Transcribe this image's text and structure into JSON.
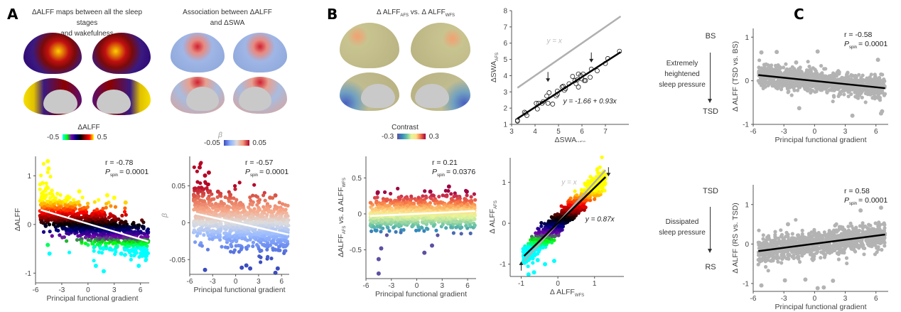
{
  "panels": {
    "A": {
      "letter": "A",
      "maps": [
        {
          "title_line1": "ΔALFF maps between all the sleep stages",
          "title_line2": "and wakefulness",
          "colorbar": {
            "label": "ΔALFF",
            "min": "-0.5",
            "max": "0.5",
            "colors": [
              "#00ffff",
              "#00ff00",
              "#7700aa",
              "#000080",
              "#000000",
              "#8b0000",
              "#ff0000",
              "#ffff00"
            ]
          }
        },
        {
          "title_line1": "Association between ΔALFF",
          "title_line2": "and ΔSWA",
          "colorbar": {
            "label": "β",
            "min": "-0.05",
            "max": "0.05",
            "colors": [
              "#3b4cc0",
              "#8db0fe",
              "#dddddd",
              "#f4987a",
              "#b40426"
            ]
          }
        }
      ]
    },
    "B": {
      "letter": "B",
      "map": {
        "title": "Δ ALFF",
        "title_sub1": "AFS",
        "title_mid": " vs. Δ ALFF",
        "title_sub2": "WFS",
        "colorbar": {
          "label": "Contrast",
          "min": "-0.3",
          "max": "0.3",
          "colors": [
            "#5e4fa2",
            "#3288bd",
            "#66c2a5",
            "#e6f598",
            "#fee08b",
            "#f46d43",
            "#9e0142"
          ]
        }
      }
    },
    "C": {
      "letter": "C",
      "top": {
        "from": "BS",
        "to": "TSD",
        "desc": [
          "Extremely",
          "heightened",
          "sleep pressure"
        ]
      },
      "bottom": {
        "from": "TSD",
        "to": "RS",
        "desc": [
          "Dissipated",
          "sleep pressure"
        ]
      }
    }
  },
  "chart_data": [
    {
      "id": "A-left",
      "type": "scatter",
      "xlabel": "Principal functional gradient",
      "ylabel": "ΔALFF",
      "xlim": [
        -6,
        7
      ],
      "ylim": [
        -1.2,
        1.4
      ],
      "xticks": [
        "-6",
        "-3",
        "0",
        "3",
        "6"
      ],
      "yticks": [
        "-1",
        "0",
        "1"
      ],
      "stats": {
        "r": "r = -0.78",
        "p_label": "P",
        "p_sub": "spin",
        "p_value": "= 0.0001"
      },
      "fit": {
        "x": [
          -5.4,
          6.9
        ],
        "y": [
          0.3,
          -0.35
        ],
        "color": "#ffffff"
      },
      "colormap": [
        "#00ffff",
        "#00ff00",
        "#7700aa",
        "#000080",
        "#000000",
        "#8b0000",
        "#ff0000",
        "#ff8c00",
        "#ffff00"
      ],
      "color_range": [
        -0.5,
        0.5
      ],
      "cloud": {
        "x_range": [
          -5.5,
          6.9
        ],
        "center_at_min": 0.3,
        "center_at_max": -0.35,
        "spread": 0.35
      },
      "outliers": [
        [
          -4.6,
          1.3
        ],
        [
          -4.5,
          1.15
        ],
        [
          -5.2,
          0.85
        ],
        [
          -1.0,
          0.68
        ],
        [
          2.2,
          0.6
        ],
        [
          3.0,
          0.55
        ],
        [
          4.3,
          0.45
        ],
        [
          -4.4,
          -0.6
        ],
        [
          0.9,
          -0.85
        ],
        [
          1.8,
          -0.96
        ],
        [
          5.8,
          -0.85
        ],
        [
          -4.6,
          -0.42
        ],
        [
          3.8,
          -0.6
        ]
      ]
    },
    {
      "id": "A-right",
      "type": "scatter",
      "xlabel": "Principal functional gradient",
      "ylabel": "β",
      "xlim": [
        -6,
        7
      ],
      "ylim": [
        -0.07,
        0.09
      ],
      "xticks": [
        "-6",
        "-3",
        "0",
        "3",
        "6"
      ],
      "yticks": [
        "-0.05",
        "0",
        "0.05"
      ],
      "stats": {
        "r": "r = -0.57",
        "p_label": "P",
        "p_sub": "spin",
        "p_value": "= 0.0001"
      },
      "fit": {
        "x": [
          -5.5,
          6.9
        ],
        "y": [
          0.013,
          -0.016
        ],
        "color": "#ffffff"
      },
      "colormap": [
        "#3b4cc0",
        "#6788ee",
        "#9abbff",
        "#dddddd",
        "#f7a889",
        "#e26952",
        "#b40426"
      ],
      "color_range": [
        -0.05,
        0.05
      ],
      "cloud": {
        "x_range": [
          -5.5,
          6.9
        ],
        "center_at_min": 0.01,
        "center_at_max": -0.01,
        "spread": 0.03
      },
      "outliers": [
        [
          -4.7,
          0.075
        ],
        [
          -3.5,
          0.068
        ],
        [
          -4.0,
          0.064
        ],
        [
          -2.3,
          0.042
        ],
        [
          -0.7,
          0.038
        ],
        [
          5.2,
          0.037
        ],
        [
          4.5,
          0.034
        ],
        [
          -4.0,
          -0.064
        ],
        [
          1.4,
          -0.058
        ],
        [
          0.8,
          -0.061
        ],
        [
          1.9,
          -0.062
        ],
        [
          5.2,
          -0.068
        ],
        [
          5.5,
          -0.062
        ]
      ]
    },
    {
      "id": "B-lower-left",
      "type": "scatter",
      "xlabel": "Principal functional gradient",
      "ylabel": "ΔALFF",
      "ylabel_sub1": "AFS",
      "ylabel_mid": " vs. Δ ALFF",
      "ylabel_sub2": "WFS",
      "xlim": [
        -6,
        7
      ],
      "ylim": [
        -0.9,
        0.8
      ],
      "xticks": [
        "-6",
        "-3",
        "0",
        "3",
        "6"
      ],
      "yticks": [
        "-0.5",
        "0",
        "0.5"
      ],
      "stats": {
        "r": "r = 0.21",
        "p_label": "P",
        "p_sub": "spin",
        "p_value": "= 0.0376"
      },
      "fit": {
        "x": [
          -5.5,
          6.9
        ],
        "y": [
          -0.03,
          0.04
        ],
        "color": "#ffffff"
      },
      "colormap": [
        "#5e4fa2",
        "#3288bd",
        "#66c2a5",
        "#abdda4",
        "#e6f598",
        "#fee08b",
        "#fdae61",
        "#f46d43",
        "#d53e4f",
        "#9e0142"
      ],
      "color_range": [
        -0.3,
        0.3
      ],
      "cloud": {
        "x_range": [
          -5.5,
          6.9
        ],
        "center_at_min": -0.02,
        "center_at_max": 0.04,
        "spread": 0.2
      },
      "outliers": [
        [
          -4.5,
          -0.83
        ],
        [
          -4.5,
          -0.63
        ],
        [
          0.9,
          -0.54
        ],
        [
          1.8,
          -0.44
        ],
        [
          3.8,
          0.38
        ],
        [
          -4.6,
          0.3
        ],
        [
          -4.2,
          -0.48
        ],
        [
          5.9,
          0.31
        ],
        [
          1.6,
          0.31
        ],
        [
          -3.5,
          0.2
        ]
      ]
    },
    {
      "id": "B-upper-right",
      "type": "scatter",
      "xlabel": "ΔSWA",
      "xlabel_sub": "WFS",
      "ylabel": "ΔSWA",
      "ylabel_sub": "AFS",
      "xlim": [
        3,
        8
      ],
      "ylim": [
        1,
        8
      ],
      "xticks": [
        "3",
        "4",
        "5",
        "6",
        "7"
      ],
      "yticks": [
        "1",
        "2",
        "3",
        "4",
        "5",
        "6",
        "7",
        "8"
      ],
      "identity_label": "y = x",
      "fit_label": "y = -1.66 + 0.93x",
      "identity_line": {
        "x": [
          3.25,
          7.65
        ],
        "y": [
          3.25,
          7.65
        ],
        "color": "#b0b0b0"
      },
      "fit": {
        "x": [
          3.25,
          7.65
        ],
        "y": [
          1.36,
          5.45
        ],
        "color": "#000000"
      },
      "arrows_at": [
        [
          4.55,
          3.7
        ],
        [
          6.4,
          4.9
        ]
      ],
      "points": [
        [
          3.25,
          1.25
        ],
        [
          3.25,
          1.2
        ],
        [
          3.55,
          1.75
        ],
        [
          3.6,
          1.7
        ],
        [
          3.65,
          1.55
        ],
        [
          4.05,
          2.3
        ],
        [
          4.1,
          1.95
        ],
        [
          4.15,
          2.3
        ],
        [
          4.35,
          2.4
        ],
        [
          4.3,
          2.3
        ],
        [
          4.5,
          2.75
        ],
        [
          4.55,
          2.3
        ],
        [
          4.6,
          2.95
        ],
        [
          4.75,
          2.25
        ],
        [
          4.95,
          3.05
        ],
        [
          4.9,
          2.75
        ],
        [
          4.95,
          2.85
        ],
        [
          5.15,
          3.3
        ],
        [
          5.2,
          3.35
        ],
        [
          5.25,
          3.1
        ],
        [
          5.3,
          3.2
        ],
        [
          5.45,
          3.5
        ],
        [
          5.6,
          3.95
        ],
        [
          5.7,
          3.7
        ],
        [
          5.75,
          3.5
        ],
        [
          5.8,
          3.75
        ],
        [
          5.85,
          4.1
        ],
        [
          5.85,
          3.3
        ],
        [
          5.95,
          4.0
        ],
        [
          6.0,
          3.8
        ],
        [
          6.05,
          4.1
        ],
        [
          6.1,
          3.7
        ],
        [
          6.15,
          3.7
        ],
        [
          6.35,
          3.9
        ],
        [
          6.4,
          4.4
        ],
        [
          6.65,
          4.3
        ],
        [
          7.0,
          4.75
        ],
        [
          7.1,
          5.05
        ],
        [
          7.6,
          5.5
        ]
      ]
    },
    {
      "id": "B-lower-right",
      "type": "scatter",
      "xlabel": "Δ ALFF",
      "xlabel_sub": "WFS",
      "ylabel": "Δ ALFF",
      "ylabel_sub": "AFS",
      "xlim": [
        -1.3,
        1.8
      ],
      "ylim": [
        -1.3,
        1.6
      ],
      "xticks": [
        "-1",
        "0",
        "1"
      ],
      "yticks": [
        "-1",
        "0",
        "1"
      ],
      "identity_label": "y = x",
      "fit_label": "y = 0.87x",
      "identity_line": {
        "x": [
          -0.92,
          1.3
        ],
        "y": [
          -0.92,
          1.3
        ],
        "color": "#b0b0b0"
      },
      "fit": {
        "x": [
          -0.92,
          1.3
        ],
        "y": [
          -0.8,
          1.13
        ],
        "color": "#000000"
      },
      "colormap": [
        "#00ffff",
        "#00ff00",
        "#7700aa",
        "#000080",
        "#000000",
        "#8b0000",
        "#ff0000",
        "#ff8c00",
        "#ffff00"
      ],
      "color_range": [
        -0.6,
        0.8
      ],
      "cloud": {
        "x_range": [
          -0.95,
          1.3
        ],
        "slope": 0.87,
        "spread": 0.16
      },
      "outliers": [
        [
          -0.8,
          -1.25
        ],
        [
          -0.65,
          -1.2
        ],
        [
          -0.35,
          -1.0
        ],
        [
          -0.1,
          -0.92
        ],
        [
          -0.55,
          -0.9
        ]
      ],
      "arrows": [
        {
          "x": -1.0,
          "y": -0.95,
          "dir": "up"
        },
        {
          "x": 1.38,
          "y": 1.3,
          "dir": "down"
        }
      ]
    },
    {
      "id": "C-top",
      "type": "scatter",
      "xlabel": "Principal functional gradient",
      "ylabel": "Δ ALFF (TSD vs. BS)",
      "xlim": [
        -6,
        7.2
      ],
      "ylim": [
        -1,
        1.2
      ],
      "xticks": [
        "-6",
        "-3",
        "0",
        "3",
        "6"
      ],
      "yticks": [
        "-1",
        "0",
        "1"
      ],
      "stats": {
        "r": "r = -0.58",
        "p_label": "P",
        "p_sub": "spin",
        "p_value": "= 0.0001"
      },
      "fit": {
        "x": [
          -5.5,
          6.9
        ],
        "y": [
          0.13,
          -0.17
        ],
        "color": "#000000"
      },
      "point_color": "#b3b3b3",
      "cloud": {
        "x_range": [
          -5.5,
          6.9
        ],
        "center_at_min": 0.13,
        "center_at_max": -0.17,
        "spread": 0.22
      },
      "outliers": [
        [
          0.3,
          0.67
        ],
        [
          -3.7,
          0.66
        ],
        [
          -5.2,
          0.65
        ],
        [
          6.2,
          0.48
        ],
        [
          -1.8,
          0.42
        ],
        [
          3.7,
          -0.8
        ],
        [
          -1.5,
          -0.63
        ],
        [
          6.5,
          -0.75
        ],
        [
          6.6,
          -0.7
        ]
      ]
    },
    {
      "id": "C-bottom",
      "type": "scatter",
      "xlabel": "Principal functional gradient",
      "ylabel": "Δ ALFF (RS vs. TSD)",
      "xlim": [
        -6,
        7.2
      ],
      "ylim": [
        -1.2,
        1.5
      ],
      "xticks": [
        "-6",
        "-3",
        "0",
        "3",
        "6"
      ],
      "yticks": [
        "-1",
        "0",
        "1"
      ],
      "stats": {
        "r": "r = 0.58",
        "p_label": "P",
        "p_sub": "spin",
        "p_value": "= 0.0001"
      },
      "fit": {
        "x": [
          -5.5,
          6.9
        ],
        "y": [
          -0.18,
          0.24
        ],
        "color": "#000000"
      },
      "point_color": "#b3b3b3",
      "cloud": {
        "x_range": [
          -5.5,
          6.9
        ],
        "center_at_min": -0.18,
        "center_at_max": 0.24,
        "spread": 0.3
      },
      "outliers": [
        [
          0.3,
          -1.12
        ],
        [
          0.9,
          -1.1
        ],
        [
          1.8,
          -0.93
        ],
        [
          -0.9,
          -0.9
        ],
        [
          -2.9,
          -0.92
        ],
        [
          -5.2,
          -1.05
        ],
        [
          6.5,
          0.92
        ],
        [
          4.5,
          0.85
        ],
        [
          -2.6,
          0.5
        ]
      ]
    }
  ]
}
